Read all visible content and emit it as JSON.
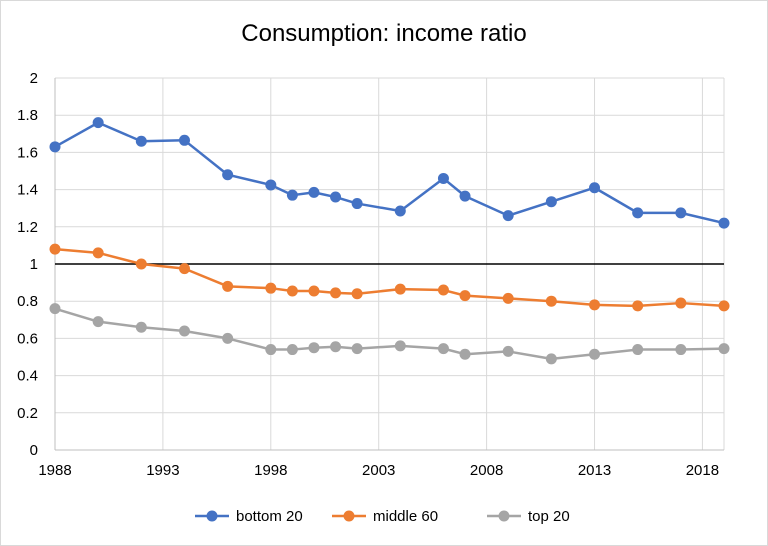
{
  "chart_data": {
    "type": "line",
    "title": "Consumption: income ratio",
    "xlabel": "",
    "ylabel": "",
    "xlim": [
      1988,
      2019
    ],
    "ylim": [
      0,
      2
    ],
    "x_ticks": [
      1988,
      1993,
      1998,
      2003,
      2008,
      2013,
      2018
    ],
    "y_ticks": [
      0,
      0.2,
      0.4,
      0.6,
      0.8,
      1,
      1.2,
      1.4,
      1.6,
      1.8,
      2
    ],
    "grid": true,
    "reference_line": 1,
    "reference_line_color": "#000000",
    "legend_position": "bottom",
    "x": [
      1988,
      1990,
      1992,
      1994,
      1996,
      1998,
      1999,
      2000,
      2001,
      2002,
      2004,
      2006,
      2007,
      2009,
      2011,
      2013,
      2015,
      2017,
      2019
    ],
    "series": [
      {
        "name": "bottom 20",
        "color": "#4472c4",
        "values": [
          1.63,
          1.76,
          1.66,
          1.665,
          1.48,
          1.425,
          1.37,
          1.385,
          1.36,
          1.325,
          1.285,
          1.46,
          1.365,
          1.26,
          1.335,
          1.41,
          1.275,
          1.275,
          1.22
        ]
      },
      {
        "name": "middle 60",
        "color": "#ed7d31",
        "values": [
          1.08,
          1.06,
          1.0,
          0.975,
          0.88,
          0.87,
          0.855,
          0.855,
          0.845,
          0.84,
          0.865,
          0.86,
          0.83,
          0.815,
          0.8,
          0.78,
          0.775,
          0.79,
          0.775
        ]
      },
      {
        "name": "top 20",
        "color": "#a5a5a5",
        "values": [
          0.76,
          0.69,
          0.66,
          0.64,
          0.6,
          0.54,
          0.54,
          0.55,
          0.555,
          0.545,
          0.56,
          0.545,
          0.515,
          0.53,
          0.49,
          0.515,
          0.54,
          0.54,
          0.545
        ]
      }
    ]
  }
}
